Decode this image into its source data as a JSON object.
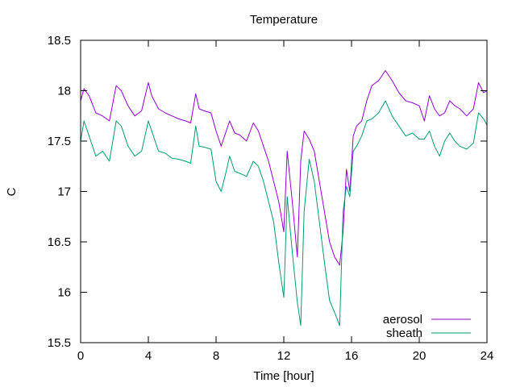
{
  "chart_data": {
    "type": "line",
    "title": "Temperature",
    "xlabel": "Time [hour]",
    "ylabel": "C",
    "xlim": [
      0,
      24
    ],
    "ylim": [
      15.5,
      18.5
    ],
    "xticks": [
      0,
      4,
      8,
      12,
      16,
      20,
      24
    ],
    "yticks": [
      15.5,
      16,
      16.5,
      17,
      17.5,
      18,
      18.5
    ],
    "xtick_labels": [
      "0",
      "4",
      "8",
      "12",
      "16",
      "20",
      "24"
    ],
    "ytick_labels": [
      "15.5",
      "16",
      "16.5",
      "17",
      "17.5",
      "18",
      "18.5"
    ],
    "grid": false,
    "legend_position": "bottom-right",
    "series": [
      {
        "name": "aerosol",
        "color": "#9400d3",
        "x": [
          0.0,
          0.2,
          0.5,
          0.9,
          1.3,
          1.7,
          2.1,
          2.4,
          2.8,
          3.2,
          3.6,
          4.0,
          4.2,
          4.6,
          5.0,
          5.4,
          5.8,
          6.2,
          6.5,
          6.8,
          7.0,
          7.3,
          7.7,
          8.0,
          8.3,
          8.6,
          8.8,
          9.1,
          9.4,
          9.8,
          10.2,
          10.5,
          10.8,
          11.1,
          11.4,
          11.7,
          12.0,
          12.2,
          12.5,
          12.8,
          13.0,
          13.2,
          13.5,
          13.8,
          14.1,
          14.4,
          14.7,
          15.0,
          15.3,
          15.5,
          15.7,
          15.9,
          16.1,
          16.3,
          16.6,
          16.9,
          17.2,
          17.6,
          18.0,
          18.4,
          18.8,
          19.2,
          19.6,
          20.0,
          20.3,
          20.6,
          20.9,
          21.2,
          21.5,
          21.8,
          22.1,
          22.4,
          22.8,
          23.2,
          23.5,
          23.8,
          24.0
        ],
        "y": [
          17.9,
          18.02,
          17.95,
          17.78,
          17.75,
          17.7,
          18.05,
          18.0,
          17.85,
          17.75,
          17.8,
          18.08,
          17.95,
          17.82,
          17.78,
          17.75,
          17.72,
          17.7,
          17.68,
          17.97,
          17.82,
          17.8,
          17.78,
          17.6,
          17.45,
          17.6,
          17.7,
          17.58,
          17.56,
          17.5,
          17.68,
          17.6,
          17.45,
          17.3,
          17.1,
          16.9,
          16.6,
          17.4,
          16.9,
          16.35,
          17.3,
          17.6,
          17.52,
          17.4,
          17.1,
          16.8,
          16.5,
          16.35,
          16.27,
          16.6,
          17.22,
          17.0,
          17.55,
          17.65,
          17.7,
          17.9,
          18.05,
          18.1,
          18.2,
          18.1,
          17.98,
          17.9,
          17.88,
          17.85,
          17.7,
          17.95,
          17.82,
          17.75,
          17.78,
          17.9,
          17.85,
          17.82,
          17.75,
          17.82,
          18.08,
          17.98,
          18.0
        ]
      },
      {
        "name": "sheath",
        "color": "#009e73",
        "x": [
          0.0,
          0.2,
          0.5,
          0.9,
          1.3,
          1.7,
          2.1,
          2.4,
          2.8,
          3.2,
          3.6,
          4.0,
          4.2,
          4.6,
          5.0,
          5.4,
          5.8,
          6.2,
          6.5,
          6.8,
          7.0,
          7.3,
          7.7,
          8.0,
          8.3,
          8.6,
          8.8,
          9.1,
          9.4,
          9.8,
          10.2,
          10.5,
          10.8,
          11.1,
          11.4,
          11.7,
          12.0,
          12.2,
          12.5,
          12.8,
          13.0,
          13.2,
          13.5,
          13.8,
          14.1,
          14.4,
          14.7,
          15.0,
          15.3,
          15.5,
          15.7,
          15.9,
          16.1,
          16.3,
          16.6,
          16.9,
          17.2,
          17.6,
          18.0,
          18.4,
          18.8,
          19.2,
          19.6,
          20.0,
          20.3,
          20.6,
          20.9,
          21.2,
          21.5,
          21.8,
          22.1,
          22.4,
          22.8,
          23.2,
          23.5,
          23.8,
          24.0
        ],
        "y": [
          17.5,
          17.7,
          17.55,
          17.35,
          17.4,
          17.3,
          17.7,
          17.65,
          17.45,
          17.35,
          17.4,
          17.7,
          17.6,
          17.4,
          17.38,
          17.33,
          17.32,
          17.3,
          17.28,
          17.65,
          17.45,
          17.44,
          17.42,
          17.1,
          17.0,
          17.2,
          17.35,
          17.2,
          17.18,
          17.15,
          17.3,
          17.25,
          17.1,
          16.9,
          16.7,
          16.3,
          15.95,
          16.95,
          16.4,
          15.9,
          15.67,
          16.8,
          17.32,
          17.1,
          16.7,
          16.3,
          15.92,
          15.8,
          15.67,
          16.8,
          17.05,
          16.95,
          17.4,
          17.45,
          17.55,
          17.7,
          17.72,
          17.78,
          17.9,
          17.75,
          17.65,
          17.55,
          17.58,
          17.52,
          17.52,
          17.6,
          17.45,
          17.35,
          17.5,
          17.58,
          17.5,
          17.45,
          17.42,
          17.48,
          17.78,
          17.72,
          17.66
        ]
      }
    ]
  }
}
